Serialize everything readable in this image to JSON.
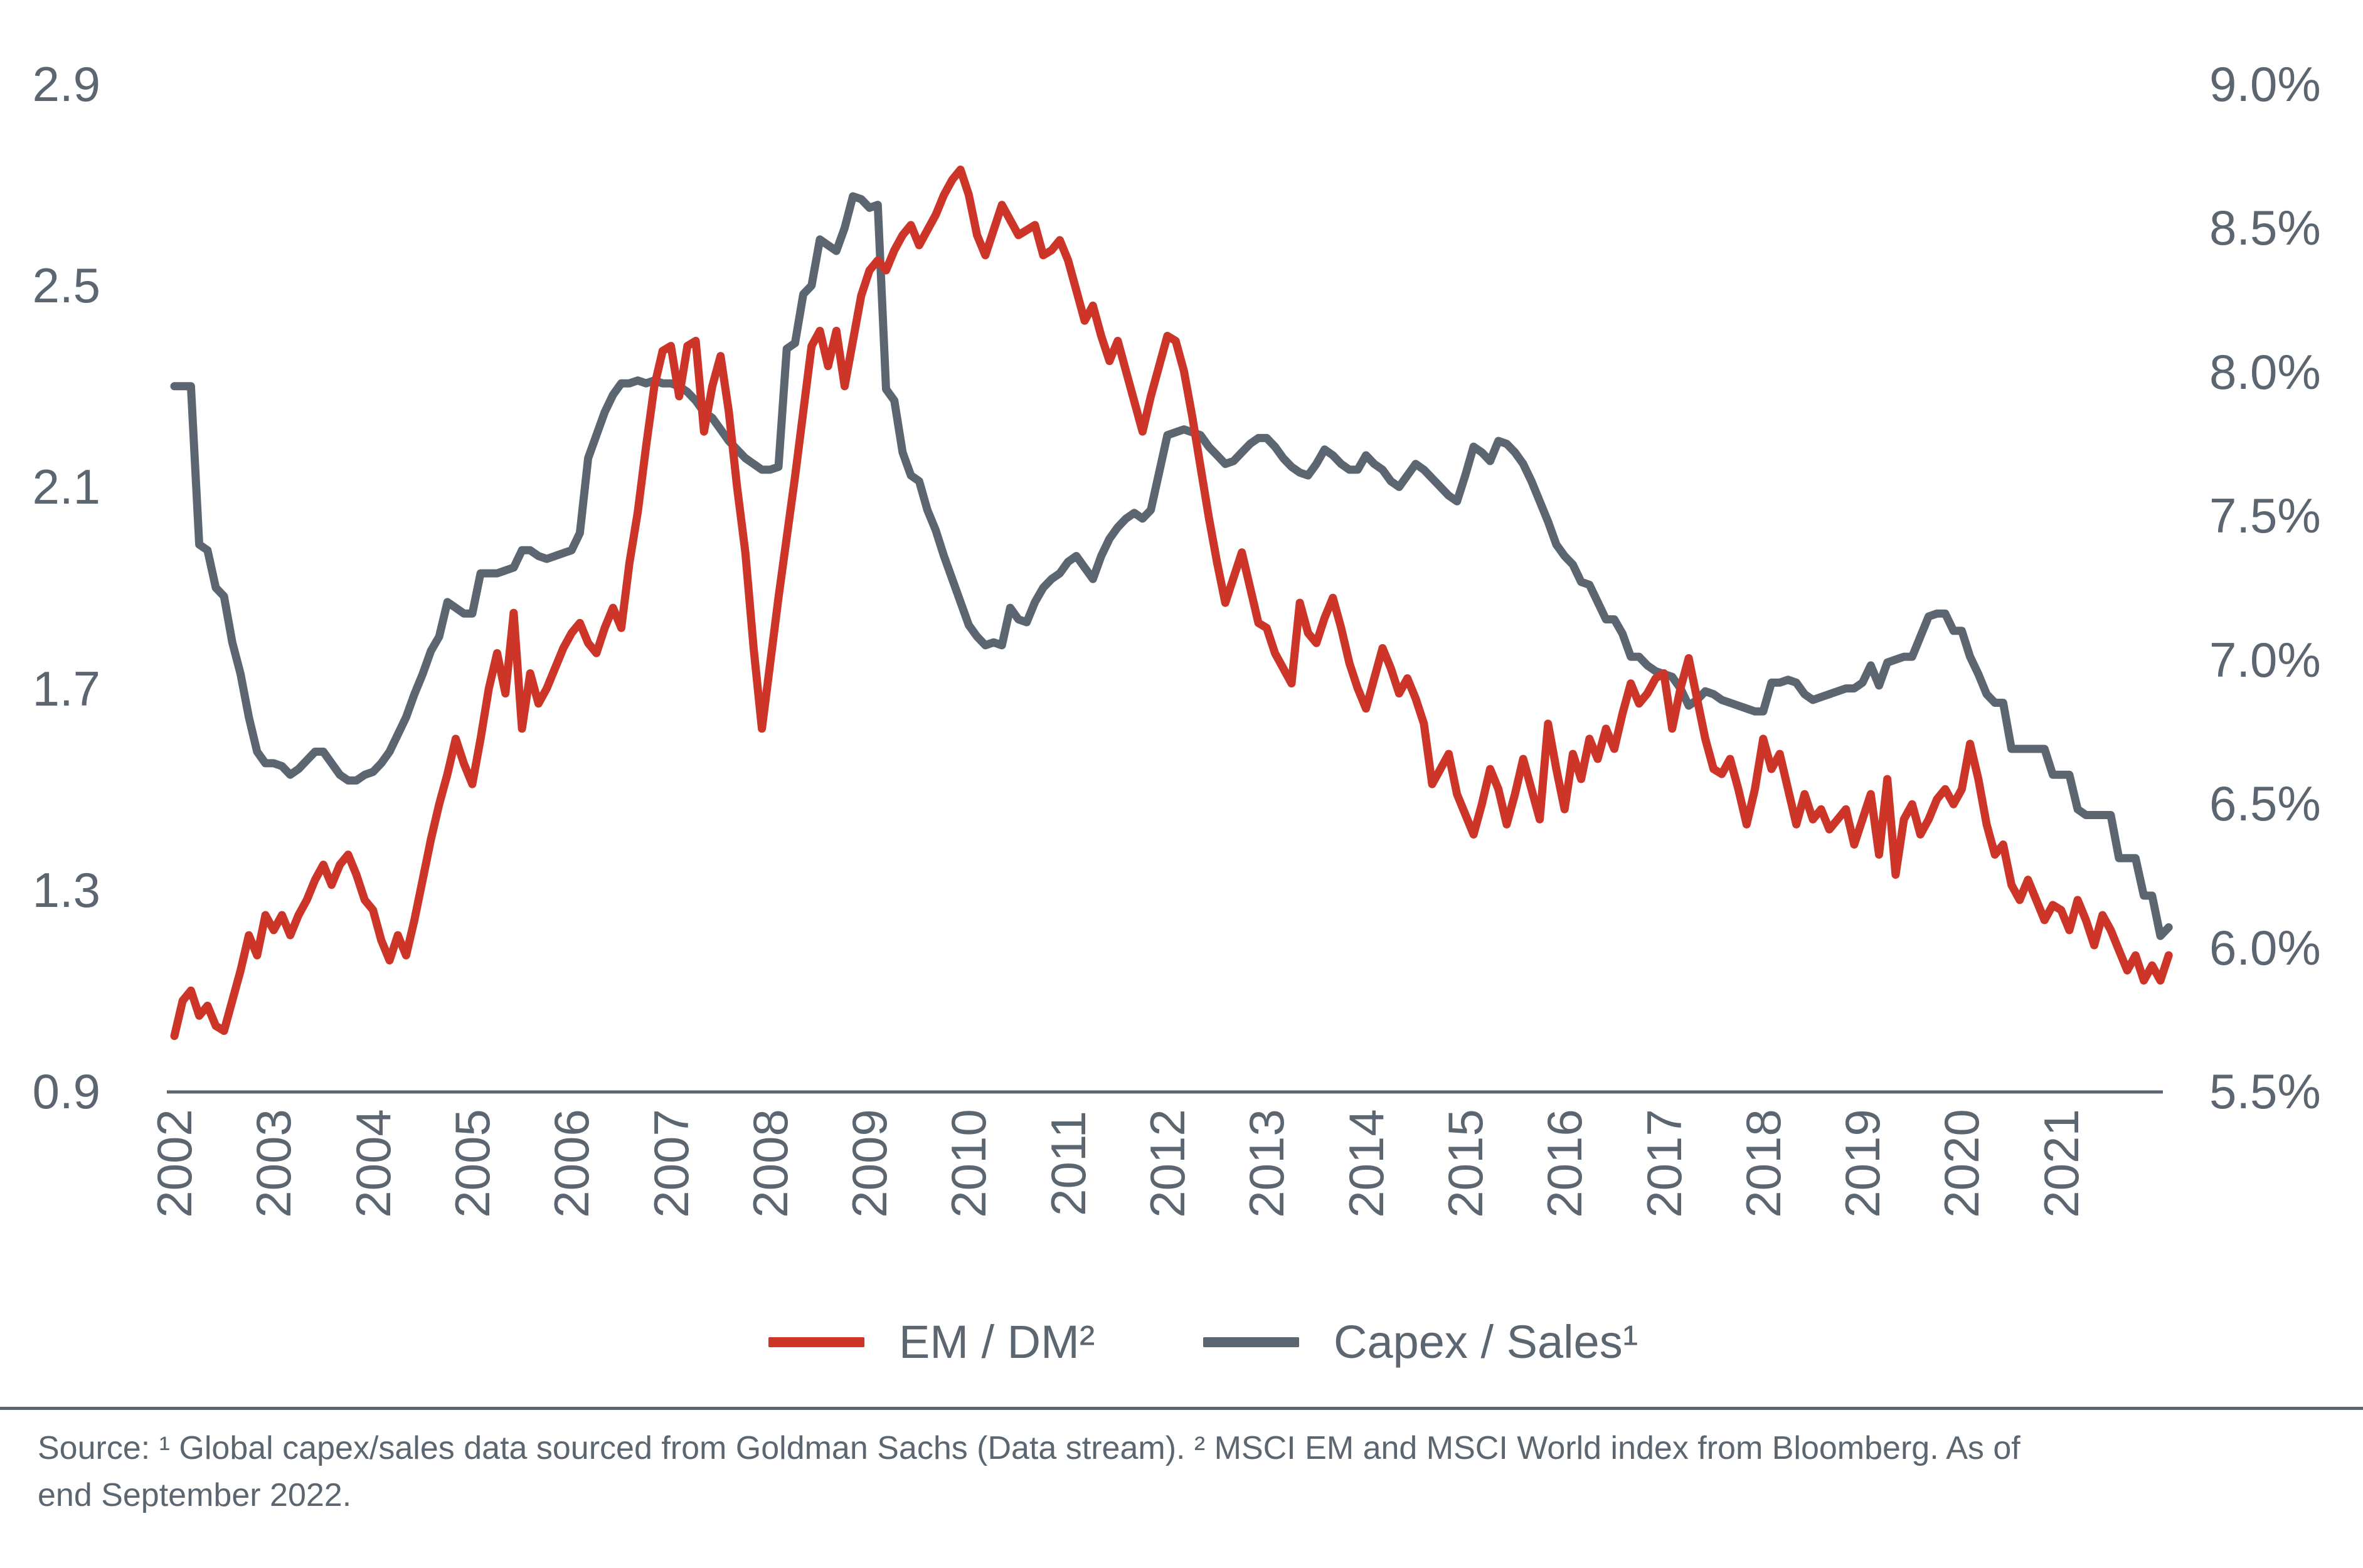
{
  "colors": {
    "em_dm_line": "#CC3528",
    "capex_sales_line": "#5C6671",
    "text": "#5B6670",
    "axis_line": "#5B6670",
    "background": "#ffffff"
  },
  "chart_data": {
    "type": "line",
    "title": "",
    "grid": false,
    "legend_position": "bottom-center",
    "x_axis": {
      "tick_labels": [
        "2002",
        "2003",
        "2004",
        "2005",
        "2006",
        "2007",
        "2008",
        "2009",
        "2010",
        "2011",
        "2012",
        "2013",
        "2014",
        "2015",
        "2016",
        "2017",
        "2018",
        "2019",
        "2020",
        "2021"
      ],
      "label_rotation_deg": -90,
      "start_year": 2002,
      "frequency": "monthly",
      "end_point": "early 2022"
    },
    "left_axis": {
      "tick_labels": [
        "2.9",
        "2.5",
        "2.1",
        "1.7",
        "1.3",
        "0.9"
      ],
      "min": 0.9,
      "max": 2.9,
      "series": "EM / DM²"
    },
    "right_axis": {
      "tick_labels": [
        "9.0%",
        "8.5%",
        "8.0%",
        "7.5%",
        "7.0%",
        "6.5%",
        "6.0%",
        "5.5%"
      ],
      "min": 5.5,
      "max": 9.0,
      "unit": "%",
      "series": "Capex / Sales¹"
    },
    "series": [
      {
        "name": "EM / DM²",
        "axis": "left",
        "color": "#CC3528",
        "values": [
          1.01,
          1.08,
          1.1,
          1.05,
          1.07,
          1.03,
          1.02,
          1.08,
          1.14,
          1.21,
          1.17,
          1.25,
          1.22,
          1.25,
          1.21,
          1.25,
          1.28,
          1.32,
          1.35,
          1.31,
          1.35,
          1.37,
          1.33,
          1.28,
          1.26,
          1.2,
          1.16,
          1.21,
          1.17,
          1.24,
          1.32,
          1.4,
          1.47,
          1.53,
          1.6,
          1.55,
          1.51,
          1.6,
          1.7,
          1.77,
          1.69,
          1.85,
          1.62,
          1.73,
          1.67,
          1.7,
          1.74,
          1.78,
          1.81,
          1.83,
          1.79,
          1.77,
          1.82,
          1.86,
          1.82,
          1.95,
          2.05,
          2.18,
          2.3,
          2.37,
          2.38,
          2.28,
          2.38,
          2.39,
          2.21,
          2.3,
          2.36,
          2.25,
          2.1,
          1.97,
          1.78,
          1.62,
          1.75,
          1.88,
          2.0,
          2.12,
          2.25,
          2.38,
          2.41,
          2.34,
          2.41,
          2.3,
          2.39,
          2.48,
          2.53,
          2.55,
          2.53,
          2.57,
          2.6,
          2.62,
          2.58,
          2.61,
          2.64,
          2.68,
          2.71,
          2.73,
          2.68,
          2.6,
          2.56,
          2.61,
          2.66,
          2.63,
          2.6,
          2.61,
          2.62,
          2.56,
          2.57,
          2.59,
          2.55,
          2.49,
          2.43,
          2.46,
          2.4,
          2.35,
          2.39,
          2.33,
          2.27,
          2.21,
          2.28,
          2.34,
          2.4,
          2.39,
          2.33,
          2.24,
          2.14,
          2.04,
          1.95,
          1.87,
          1.92,
          1.97,
          1.9,
          1.83,
          1.82,
          1.77,
          1.74,
          1.71,
          1.87,
          1.81,
          1.79,
          1.84,
          1.88,
          1.82,
          1.75,
          1.7,
          1.66,
          1.72,
          1.78,
          1.74,
          1.69,
          1.72,
          1.68,
          1.63,
          1.51,
          1.54,
          1.57,
          1.49,
          1.45,
          1.41,
          1.47,
          1.54,
          1.5,
          1.43,
          1.49,
          1.56,
          1.5,
          1.44,
          1.63,
          1.54,
          1.46,
          1.57,
          1.52,
          1.6,
          1.56,
          1.62,
          1.58,
          1.65,
          1.71,
          1.67,
          1.69,
          1.72,
          1.73,
          1.62,
          1.7,
          1.76,
          1.68,
          1.6,
          1.54,
          1.53,
          1.56,
          1.5,
          1.43,
          1.5,
          1.6,
          1.54,
          1.57,
          1.5,
          1.43,
          1.49,
          1.44,
          1.46,
          1.42,
          1.44,
          1.46,
          1.39,
          1.44,
          1.49,
          1.37,
          1.52,
          1.33,
          1.44,
          1.47,
          1.41,
          1.44,
          1.48,
          1.5,
          1.47,
          1.5,
          1.59,
          1.52,
          1.43,
          1.37,
          1.39,
          1.31,
          1.28,
          1.32,
          1.28,
          1.24,
          1.27,
          1.26,
          1.22,
          1.28,
          1.24,
          1.19,
          1.25,
          1.22,
          1.18,
          1.14,
          1.17,
          1.12,
          1.15,
          1.12,
          1.17
        ]
      },
      {
        "name": "Capex / Sales¹",
        "axis": "right",
        "color": "#5C6671",
        "values": [
          7.95,
          7.95,
          7.95,
          7.4,
          7.38,
          7.25,
          7.22,
          7.06,
          6.95,
          6.8,
          6.68,
          6.64,
          6.64,
          6.63,
          6.6,
          6.62,
          6.65,
          6.68,
          6.68,
          6.64,
          6.6,
          6.58,
          6.58,
          6.6,
          6.61,
          6.64,
          6.68,
          6.74,
          6.8,
          6.88,
          6.95,
          7.03,
          7.08,
          7.2,
          7.18,
          7.16,
          7.16,
          7.3,
          7.3,
          7.3,
          7.31,
          7.32,
          7.38,
          7.38,
          7.36,
          7.35,
          7.36,
          7.37,
          7.38,
          7.44,
          7.7,
          7.78,
          7.86,
          7.92,
          7.96,
          7.96,
          7.97,
          7.96,
          7.97,
          7.96,
          7.96,
          7.95,
          7.93,
          7.9,
          7.86,
          7.84,
          7.8,
          7.76,
          7.73,
          7.7,
          7.68,
          7.66,
          7.66,
          7.67,
          8.08,
          8.1,
          8.27,
          8.3,
          8.46,
          8.44,
          8.42,
          8.5,
          8.61,
          8.6,
          8.57,
          8.58,
          7.94,
          7.9,
          7.72,
          7.64,
          7.62,
          7.52,
          7.45,
          7.36,
          7.28,
          7.2,
          7.12,
          7.08,
          7.05,
          7.06,
          7.05,
          7.18,
          7.14,
          7.13,
          7.2,
          7.25,
          7.28,
          7.3,
          7.34,
          7.36,
          7.32,
          7.28,
          7.36,
          7.42,
          7.46,
          7.49,
          7.51,
          7.49,
          7.52,
          7.65,
          7.78,
          7.79,
          7.8,
          7.79,
          7.78,
          7.74,
          7.71,
          7.68,
          7.69,
          7.72,
          7.75,
          7.77,
          7.77,
          7.74,
          7.7,
          7.67,
          7.65,
          7.64,
          7.68,
          7.73,
          7.71,
          7.68,
          7.66,
          7.66,
          7.71,
          7.68,
          7.66,
          7.62,
          7.6,
          7.64,
          7.68,
          7.66,
          7.63,
          7.6,
          7.57,
          7.55,
          7.64,
          7.74,
          7.72,
          7.69,
          7.76,
          7.75,
          7.72,
          7.68,
          7.62,
          7.55,
          7.48,
          7.4,
          7.36,
          7.33,
          7.27,
          7.26,
          7.2,
          7.14,
          7.14,
          7.09,
          7.01,
          7.01,
          6.98,
          6.96,
          6.95,
          6.94,
          6.9,
          6.84,
          6.86,
          6.89,
          6.88,
          6.86,
          6.85,
          6.84,
          6.83,
          6.82,
          6.82,
          6.92,
          6.92,
          6.93,
          6.92,
          6.88,
          6.86,
          6.87,
          6.88,
          6.89,
          6.9,
          6.9,
          6.92,
          6.98,
          6.91,
          6.99,
          7.0,
          7.01,
          7.01,
          7.08,
          7.15,
          7.16,
          7.16,
          7.1,
          7.1,
          7.01,
          6.95,
          6.88,
          6.85,
          6.85,
          6.69,
          6.69,
          6.69,
          6.69,
          6.69,
          6.6,
          6.6,
          6.6,
          6.48,
          6.46,
          6.46,
          6.46,
          6.46,
          6.31,
          6.31,
          6.31,
          6.18,
          6.18,
          6.04,
          6.07
        ]
      }
    ]
  },
  "legend": {
    "items": [
      {
        "label": "EM / DM²",
        "color": "#CC3528"
      },
      {
        "label": "Capex / Sales¹",
        "color": "#5C6671"
      }
    ]
  },
  "footer": {
    "source_line1": "Source: ¹ Global capex/sales data sourced from Goldman Sachs (Data stream).  ² MSCI EM and MSCI World index from Bloomberg. As of",
    "source_line2": "end September 2022."
  }
}
